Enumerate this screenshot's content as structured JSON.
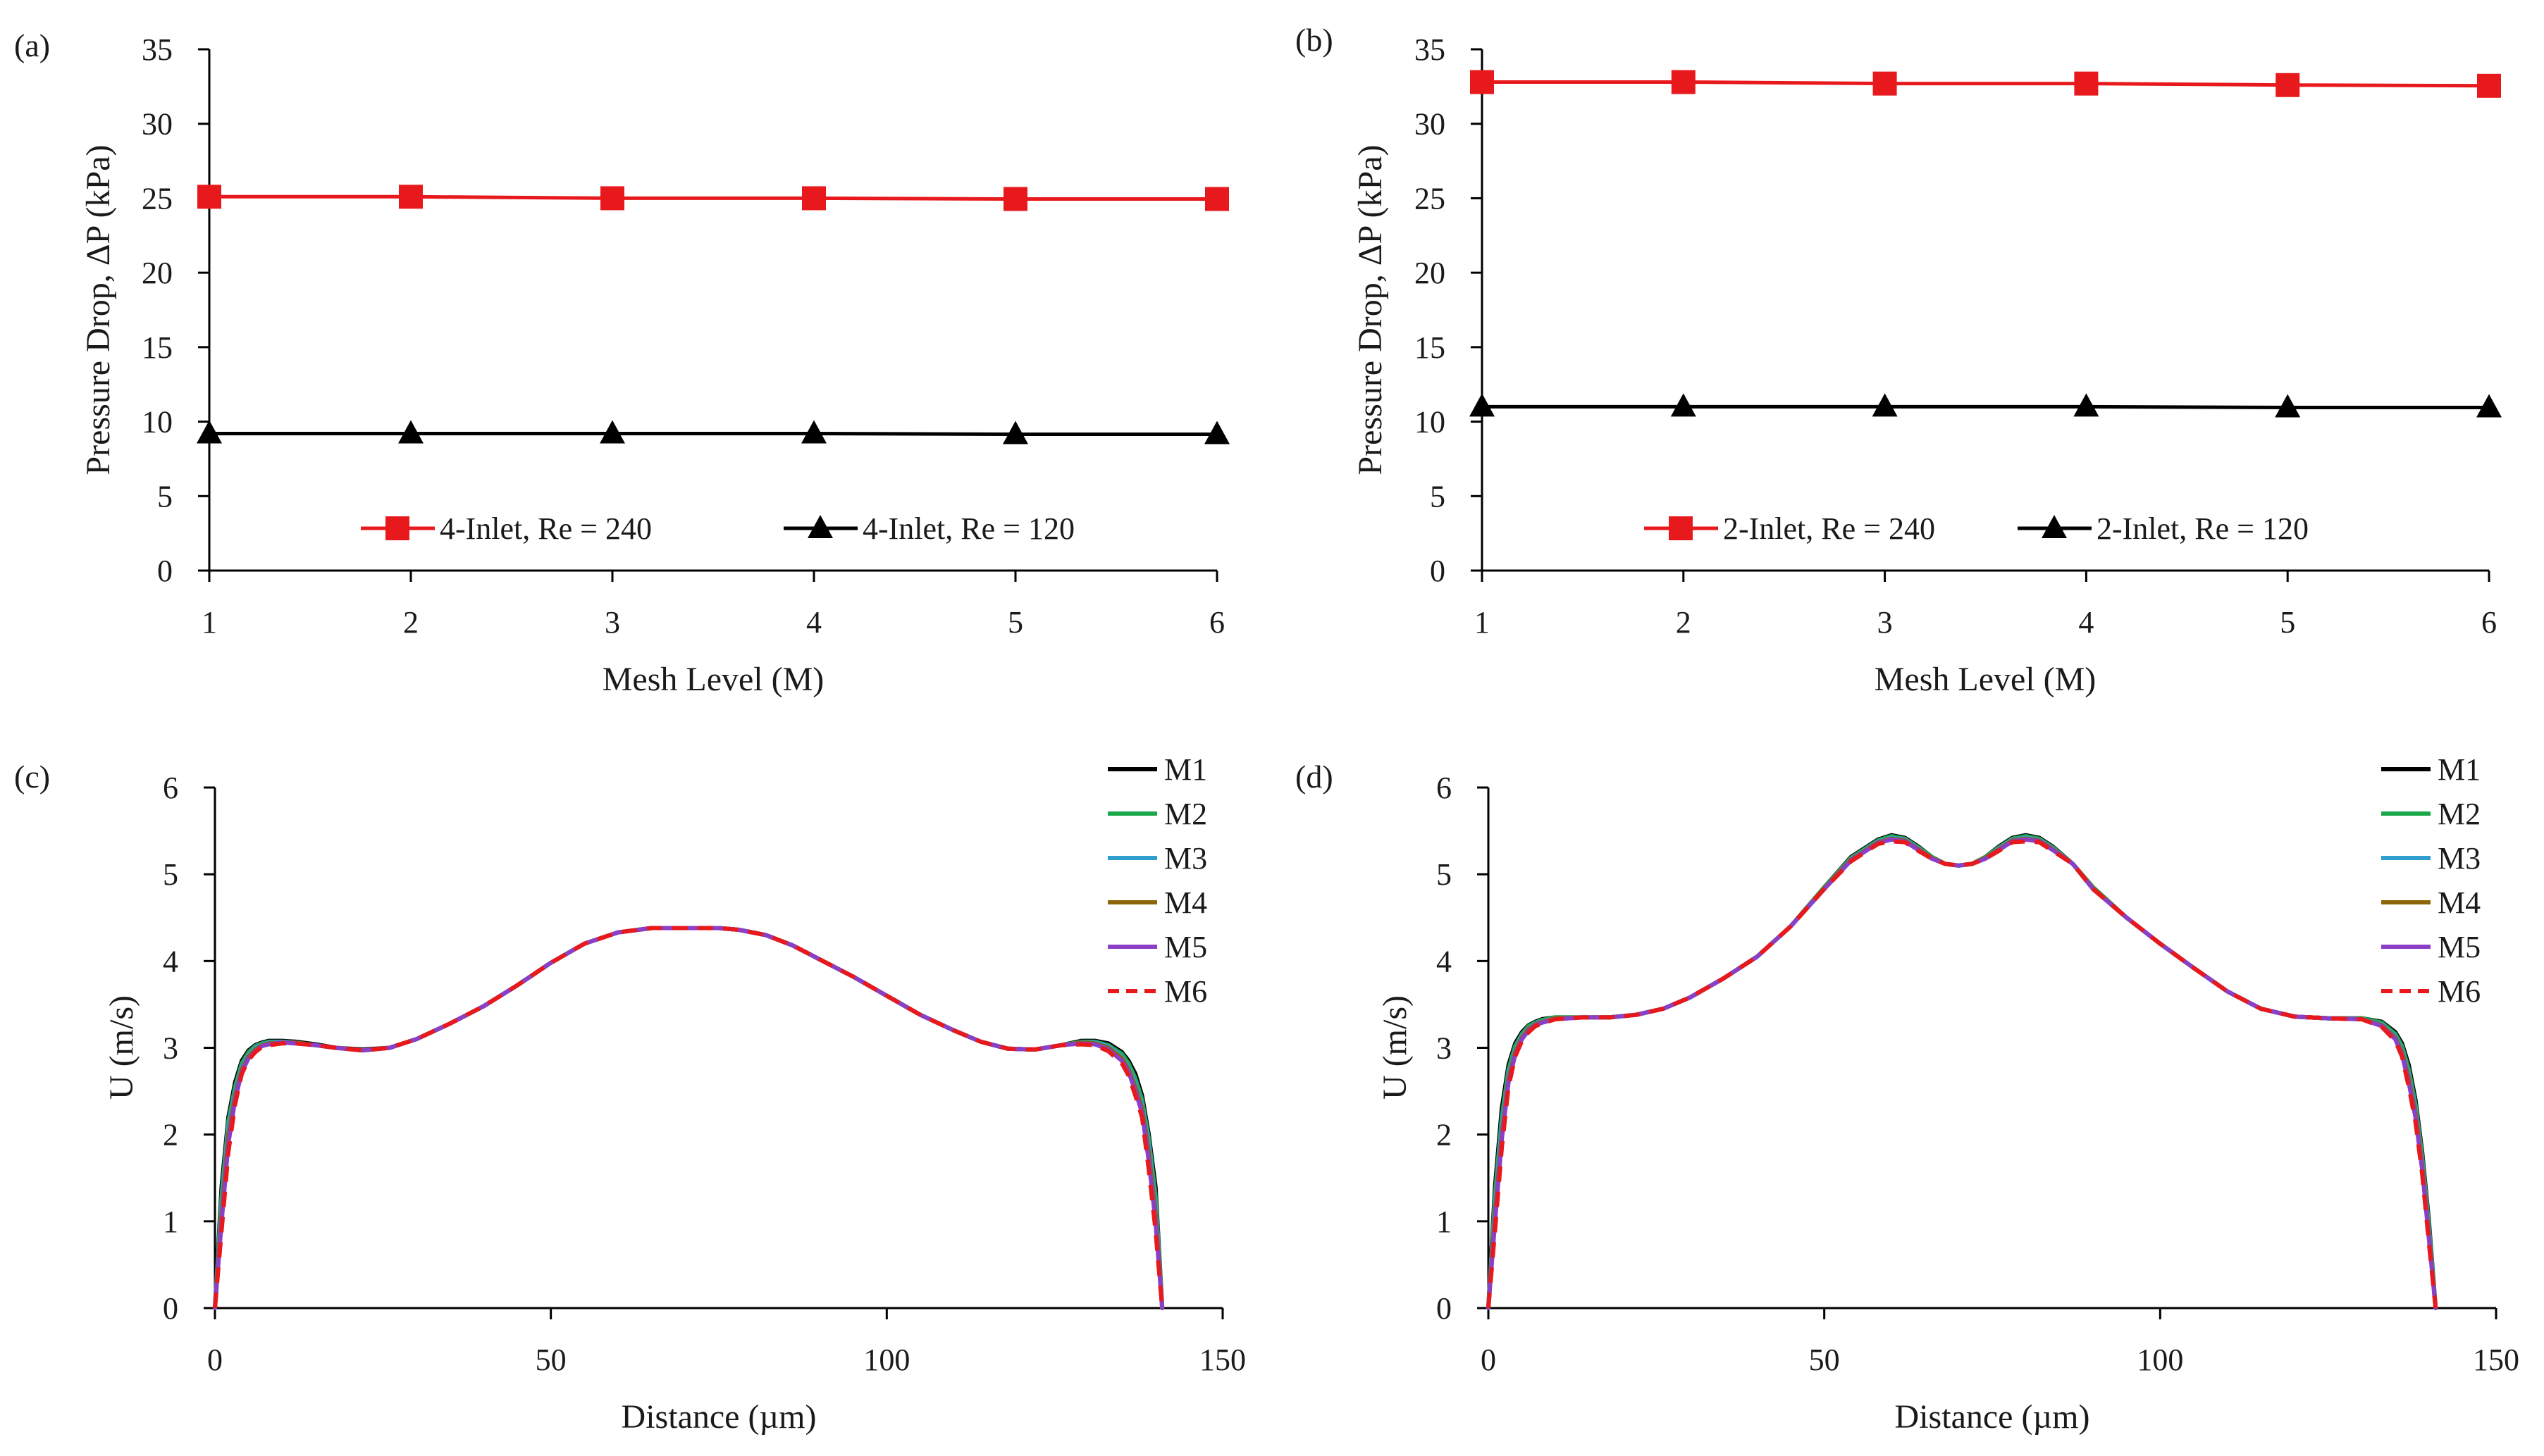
{
  "colors": {
    "axis": "#000000",
    "red": "#e8191c",
    "black": "#000000",
    "M1": "#000000",
    "M2": "#1aa84a",
    "M3": "#2f9fd0",
    "M4": "#8b6508",
    "M5": "#8a3fc6",
    "M6": "#e8191c"
  },
  "chart_data": [
    {
      "id": "a",
      "panel_label": "(a)",
      "type": "line",
      "xlabel": "Mesh Level (M)",
      "ylabel": "Pressure Drop, ΔP (kPa)",
      "xlim": [
        1,
        6
      ],
      "ylim": [
        0,
        35
      ],
      "xticks": [
        1,
        2,
        3,
        4,
        5,
        6
      ],
      "yticks": [
        0,
        5,
        10,
        15,
        20,
        25,
        30,
        35
      ],
      "x": [
        1,
        2,
        3,
        4,
        5,
        6
      ],
      "legend_position": "bottom-inside",
      "series": [
        {
          "name": "4-Inlet, Re = 240",
          "color": "#e8191c",
          "marker": "square",
          "values": [
            25.1,
            25.1,
            25.0,
            25.0,
            24.95,
            24.95
          ]
        },
        {
          "name": "4-Inlet, Re = 120",
          "color": "#000000",
          "marker": "triangle",
          "values": [
            9.2,
            9.2,
            9.2,
            9.2,
            9.15,
            9.15
          ]
        }
      ]
    },
    {
      "id": "b",
      "panel_label": "(b)",
      "type": "line",
      "xlabel": "Mesh Level (M)",
      "ylabel": "Pressure Drop, ΔP (kPa)",
      "xlim": [
        1,
        6
      ],
      "ylim": [
        0,
        35
      ],
      "xticks": [
        1,
        2,
        3,
        4,
        5,
        6
      ],
      "yticks": [
        0,
        5,
        10,
        15,
        20,
        25,
        30,
        35
      ],
      "x": [
        1,
        2,
        3,
        4,
        5,
        6
      ],
      "legend_position": "bottom-inside",
      "series": [
        {
          "name": "2-Inlet, Re = 240",
          "color": "#e8191c",
          "marker": "square",
          "values": [
            32.8,
            32.8,
            32.7,
            32.7,
            32.6,
            32.55
          ]
        },
        {
          "name": "2-Inlet, Re = 120",
          "color": "#000000",
          "marker": "triangle",
          "values": [
            11.0,
            11.0,
            11.0,
            11.0,
            10.95,
            10.95
          ]
        }
      ]
    },
    {
      "id": "c",
      "panel_label": "(c)",
      "type": "line",
      "xlabel": "Distance (µm)",
      "ylabel": "U (m/s)",
      "xlim": [
        0,
        150
      ],
      "ylim": [
        0,
        6
      ],
      "xticks": [
        0,
        50,
        100,
        150
      ],
      "yticks": [
        0,
        1,
        2,
        3,
        4,
        5,
        6
      ],
      "x": [
        0,
        1,
        2,
        3,
        4,
        5,
        6,
        7,
        8,
        10,
        12,
        15,
        18,
        22,
        26,
        30,
        35,
        40,
        45,
        50,
        55,
        60,
        65,
        70,
        75,
        78,
        82,
        86,
        90,
        95,
        100,
        105,
        110,
        114,
        118,
        122,
        126,
        129,
        131,
        133,
        135,
        136,
        137,
        138,
        139,
        140,
        141
      ],
      "legend_position": "top-right-outside",
      "series": [
        {
          "name": "M1",
          "color": "#000000",
          "dash": false,
          "values": [
            0,
            1.4,
            2.2,
            2.6,
            2.85,
            2.97,
            3.03,
            3.06,
            3.08,
            3.08,
            3.07,
            3.04,
            3.0,
            2.98,
            3.0,
            3.1,
            3.28,
            3.48,
            3.72,
            3.98,
            4.2,
            4.33,
            4.38,
            4.38,
            4.38,
            4.36,
            4.3,
            4.18,
            4.02,
            3.82,
            3.6,
            3.38,
            3.2,
            3.07,
            2.99,
            2.98,
            3.03,
            3.08,
            3.08,
            3.05,
            2.95,
            2.85,
            2.7,
            2.45,
            2.0,
            1.4,
            0
          ]
        },
        {
          "name": "M2",
          "color": "#1aa84a",
          "dash": false,
          "values": [
            0,
            1.3,
            2.15,
            2.55,
            2.82,
            2.95,
            3.02,
            3.05,
            3.07,
            3.07,
            3.06,
            3.03,
            3.0,
            2.97,
            3.0,
            3.1,
            3.28,
            3.48,
            3.72,
            3.98,
            4.2,
            4.33,
            4.38,
            4.38,
            4.38,
            4.36,
            4.3,
            4.18,
            4.02,
            3.82,
            3.6,
            3.38,
            3.2,
            3.07,
            2.99,
            2.98,
            3.03,
            3.07,
            3.07,
            3.03,
            2.93,
            2.82,
            2.65,
            2.4,
            1.95,
            1.3,
            0
          ]
        },
        {
          "name": "M3",
          "color": "#2f9fd0",
          "dash": false,
          "values": [
            0,
            1.2,
            2.1,
            2.5,
            2.78,
            2.92,
            3.0,
            3.04,
            3.06,
            3.07,
            3.06,
            3.03,
            3.0,
            2.97,
            3.0,
            3.1,
            3.28,
            3.48,
            3.72,
            3.98,
            4.2,
            4.33,
            4.38,
            4.38,
            4.38,
            4.36,
            4.3,
            4.18,
            4.02,
            3.82,
            3.6,
            3.38,
            3.2,
            3.07,
            2.99,
            2.98,
            3.03,
            3.06,
            3.06,
            3.02,
            2.9,
            2.78,
            2.6,
            2.35,
            1.9,
            1.2,
            0
          ]
        },
        {
          "name": "M4",
          "color": "#8b6508",
          "dash": false,
          "values": [
            0,
            1.1,
            2.0,
            2.45,
            2.75,
            2.9,
            2.98,
            3.03,
            3.05,
            3.06,
            3.06,
            3.03,
            3.0,
            2.97,
            3.0,
            3.1,
            3.28,
            3.48,
            3.72,
            3.98,
            4.2,
            4.33,
            4.38,
            4.38,
            4.38,
            4.36,
            4.3,
            4.18,
            4.02,
            3.82,
            3.6,
            3.38,
            3.2,
            3.07,
            2.99,
            2.98,
            3.03,
            3.06,
            3.05,
            3.0,
            2.88,
            2.75,
            2.55,
            2.3,
            1.8,
            1.1,
            0
          ]
        },
        {
          "name": "M5",
          "color": "#8a3fc6",
          "dash": false,
          "values": [
            0,
            1.0,
            1.9,
            2.4,
            2.72,
            2.88,
            2.96,
            3.02,
            3.04,
            3.06,
            3.05,
            3.03,
            3.0,
            2.97,
            3.0,
            3.1,
            3.28,
            3.48,
            3.72,
            3.98,
            4.2,
            4.33,
            4.38,
            4.38,
            4.38,
            4.36,
            4.3,
            4.18,
            4.02,
            3.82,
            3.6,
            3.38,
            3.2,
            3.07,
            2.99,
            2.98,
            3.03,
            3.05,
            3.04,
            2.98,
            2.85,
            2.72,
            2.5,
            2.25,
            1.7,
            1.0,
            0
          ]
        },
        {
          "name": "M6",
          "color": "#e8191c",
          "dash": true,
          "values": [
            0,
            0.9,
            1.8,
            2.35,
            2.7,
            2.86,
            2.95,
            3.01,
            3.03,
            3.05,
            3.05,
            3.03,
            3.0,
            2.97,
            3.0,
            3.1,
            3.28,
            3.48,
            3.72,
            3.98,
            4.2,
            4.33,
            4.38,
            4.38,
            4.38,
            4.36,
            4.3,
            4.18,
            4.02,
            3.82,
            3.6,
            3.38,
            3.2,
            3.07,
            2.99,
            2.98,
            3.03,
            3.04,
            3.03,
            2.96,
            2.82,
            2.68,
            2.45,
            2.2,
            1.6,
            0.9,
            0
          ]
        }
      ]
    },
    {
      "id": "d",
      "panel_label": "(d)",
      "type": "line",
      "xlabel": "Distance (µm)",
      "ylabel": "U (m/s)",
      "xlim": [
        0,
        150
      ],
      "ylim": [
        0,
        6
      ],
      "xticks": [
        0,
        50,
        100,
        150
      ],
      "yticks": [
        0,
        1,
        2,
        3,
        4,
        5,
        6
      ],
      "x": [
        0,
        1,
        2,
        3,
        4,
        5,
        6,
        7,
        8,
        10,
        14,
        18,
        22,
        26,
        30,
        35,
        40,
        45,
        50,
        54,
        58,
        60,
        62,
        64,
        66,
        68,
        70,
        72,
        74,
        76,
        78,
        80,
        82,
        84,
        87,
        90,
        95,
        100,
        105,
        110,
        115,
        120,
        125,
        130,
        133,
        135,
        136,
        137,
        138,
        139,
        140,
        141
      ],
      "legend_position": "top-right-outside",
      "series": [
        {
          "name": "M1",
          "color": "#000000",
          "dash": false,
          "values": [
            0,
            1.4,
            2.3,
            2.8,
            3.05,
            3.18,
            3.26,
            3.3,
            3.33,
            3.35,
            3.35,
            3.35,
            3.38,
            3.45,
            3.58,
            3.8,
            4.05,
            4.4,
            4.85,
            5.2,
            5.4,
            5.45,
            5.42,
            5.32,
            5.2,
            5.12,
            5.1,
            5.12,
            5.2,
            5.32,
            5.42,
            5.45,
            5.42,
            5.32,
            5.12,
            4.85,
            4.5,
            4.2,
            3.92,
            3.65,
            3.45,
            3.36,
            3.34,
            3.34,
            3.3,
            3.18,
            3.05,
            2.8,
            2.4,
            1.8,
            1.0,
            0
          ]
        },
        {
          "name": "M2",
          "color": "#1aa84a",
          "dash": false,
          "values": [
            0,
            1.3,
            2.2,
            2.75,
            3.02,
            3.16,
            3.25,
            3.29,
            3.32,
            3.35,
            3.35,
            3.35,
            3.38,
            3.45,
            3.58,
            3.8,
            4.05,
            4.4,
            4.85,
            5.19,
            5.39,
            5.44,
            5.41,
            5.31,
            5.2,
            5.12,
            5.1,
            5.12,
            5.2,
            5.31,
            5.41,
            5.44,
            5.41,
            5.31,
            5.12,
            4.85,
            4.5,
            4.2,
            3.92,
            3.65,
            3.45,
            3.36,
            3.34,
            3.34,
            3.29,
            3.16,
            3.02,
            2.75,
            2.35,
            1.75,
            0.95,
            0
          ]
        },
        {
          "name": "M3",
          "color": "#2f9fd0",
          "dash": false,
          "values": [
            0,
            1.2,
            2.1,
            2.7,
            2.98,
            3.14,
            3.23,
            3.28,
            3.31,
            3.34,
            3.35,
            3.35,
            3.38,
            3.45,
            3.58,
            3.8,
            4.05,
            4.4,
            4.84,
            5.18,
            5.38,
            5.42,
            5.4,
            5.3,
            5.19,
            5.12,
            5.1,
            5.12,
            5.19,
            5.3,
            5.4,
            5.42,
            5.4,
            5.3,
            5.12,
            4.84,
            4.5,
            4.2,
            3.92,
            3.65,
            3.45,
            3.36,
            3.34,
            3.33,
            3.27,
            3.14,
            2.98,
            2.7,
            2.3,
            1.7,
            0.9,
            0
          ]
        },
        {
          "name": "M4",
          "color": "#8b6508",
          "dash": false,
          "values": [
            0,
            1.1,
            2.0,
            2.65,
            2.95,
            3.12,
            3.22,
            3.27,
            3.3,
            3.34,
            3.35,
            3.35,
            3.38,
            3.45,
            3.58,
            3.8,
            4.05,
            4.4,
            4.84,
            5.17,
            5.37,
            5.41,
            5.39,
            5.29,
            5.19,
            5.12,
            5.1,
            5.12,
            5.19,
            5.29,
            5.39,
            5.41,
            5.39,
            5.29,
            5.12,
            4.84,
            4.5,
            4.2,
            3.92,
            3.65,
            3.45,
            3.36,
            3.34,
            3.33,
            3.26,
            3.12,
            2.95,
            2.65,
            2.25,
            1.65,
            0.85,
            0
          ]
        },
        {
          "name": "M5",
          "color": "#8a3fc6",
          "dash": false,
          "values": [
            0,
            1.0,
            1.95,
            2.6,
            2.92,
            3.1,
            3.2,
            3.26,
            3.29,
            3.33,
            3.35,
            3.35,
            3.38,
            3.45,
            3.58,
            3.8,
            4.05,
            4.4,
            4.83,
            5.16,
            5.36,
            5.4,
            5.38,
            5.28,
            5.18,
            5.12,
            5.1,
            5.12,
            5.18,
            5.28,
            5.38,
            5.4,
            5.38,
            5.28,
            5.12,
            4.83,
            4.5,
            4.2,
            3.92,
            3.65,
            3.45,
            3.36,
            3.34,
            3.33,
            3.25,
            3.1,
            2.92,
            2.6,
            2.2,
            1.6,
            0.8,
            0
          ]
        },
        {
          "name": "M6",
          "color": "#e8191c",
          "dash": true,
          "values": [
            0,
            0.9,
            1.85,
            2.55,
            2.9,
            3.08,
            3.18,
            3.25,
            3.28,
            3.33,
            3.35,
            3.35,
            3.38,
            3.45,
            3.58,
            3.8,
            4.05,
            4.4,
            4.83,
            5.15,
            5.35,
            5.38,
            5.37,
            5.27,
            5.18,
            5.12,
            5.1,
            5.12,
            5.18,
            5.27,
            5.37,
            5.38,
            5.37,
            5.27,
            5.12,
            4.83,
            4.5,
            4.2,
            3.92,
            3.65,
            3.45,
            3.36,
            3.34,
            3.33,
            3.24,
            3.08,
            2.9,
            2.55,
            2.15,
            1.55,
            0.75,
            0
          ]
        }
      ]
    }
  ]
}
